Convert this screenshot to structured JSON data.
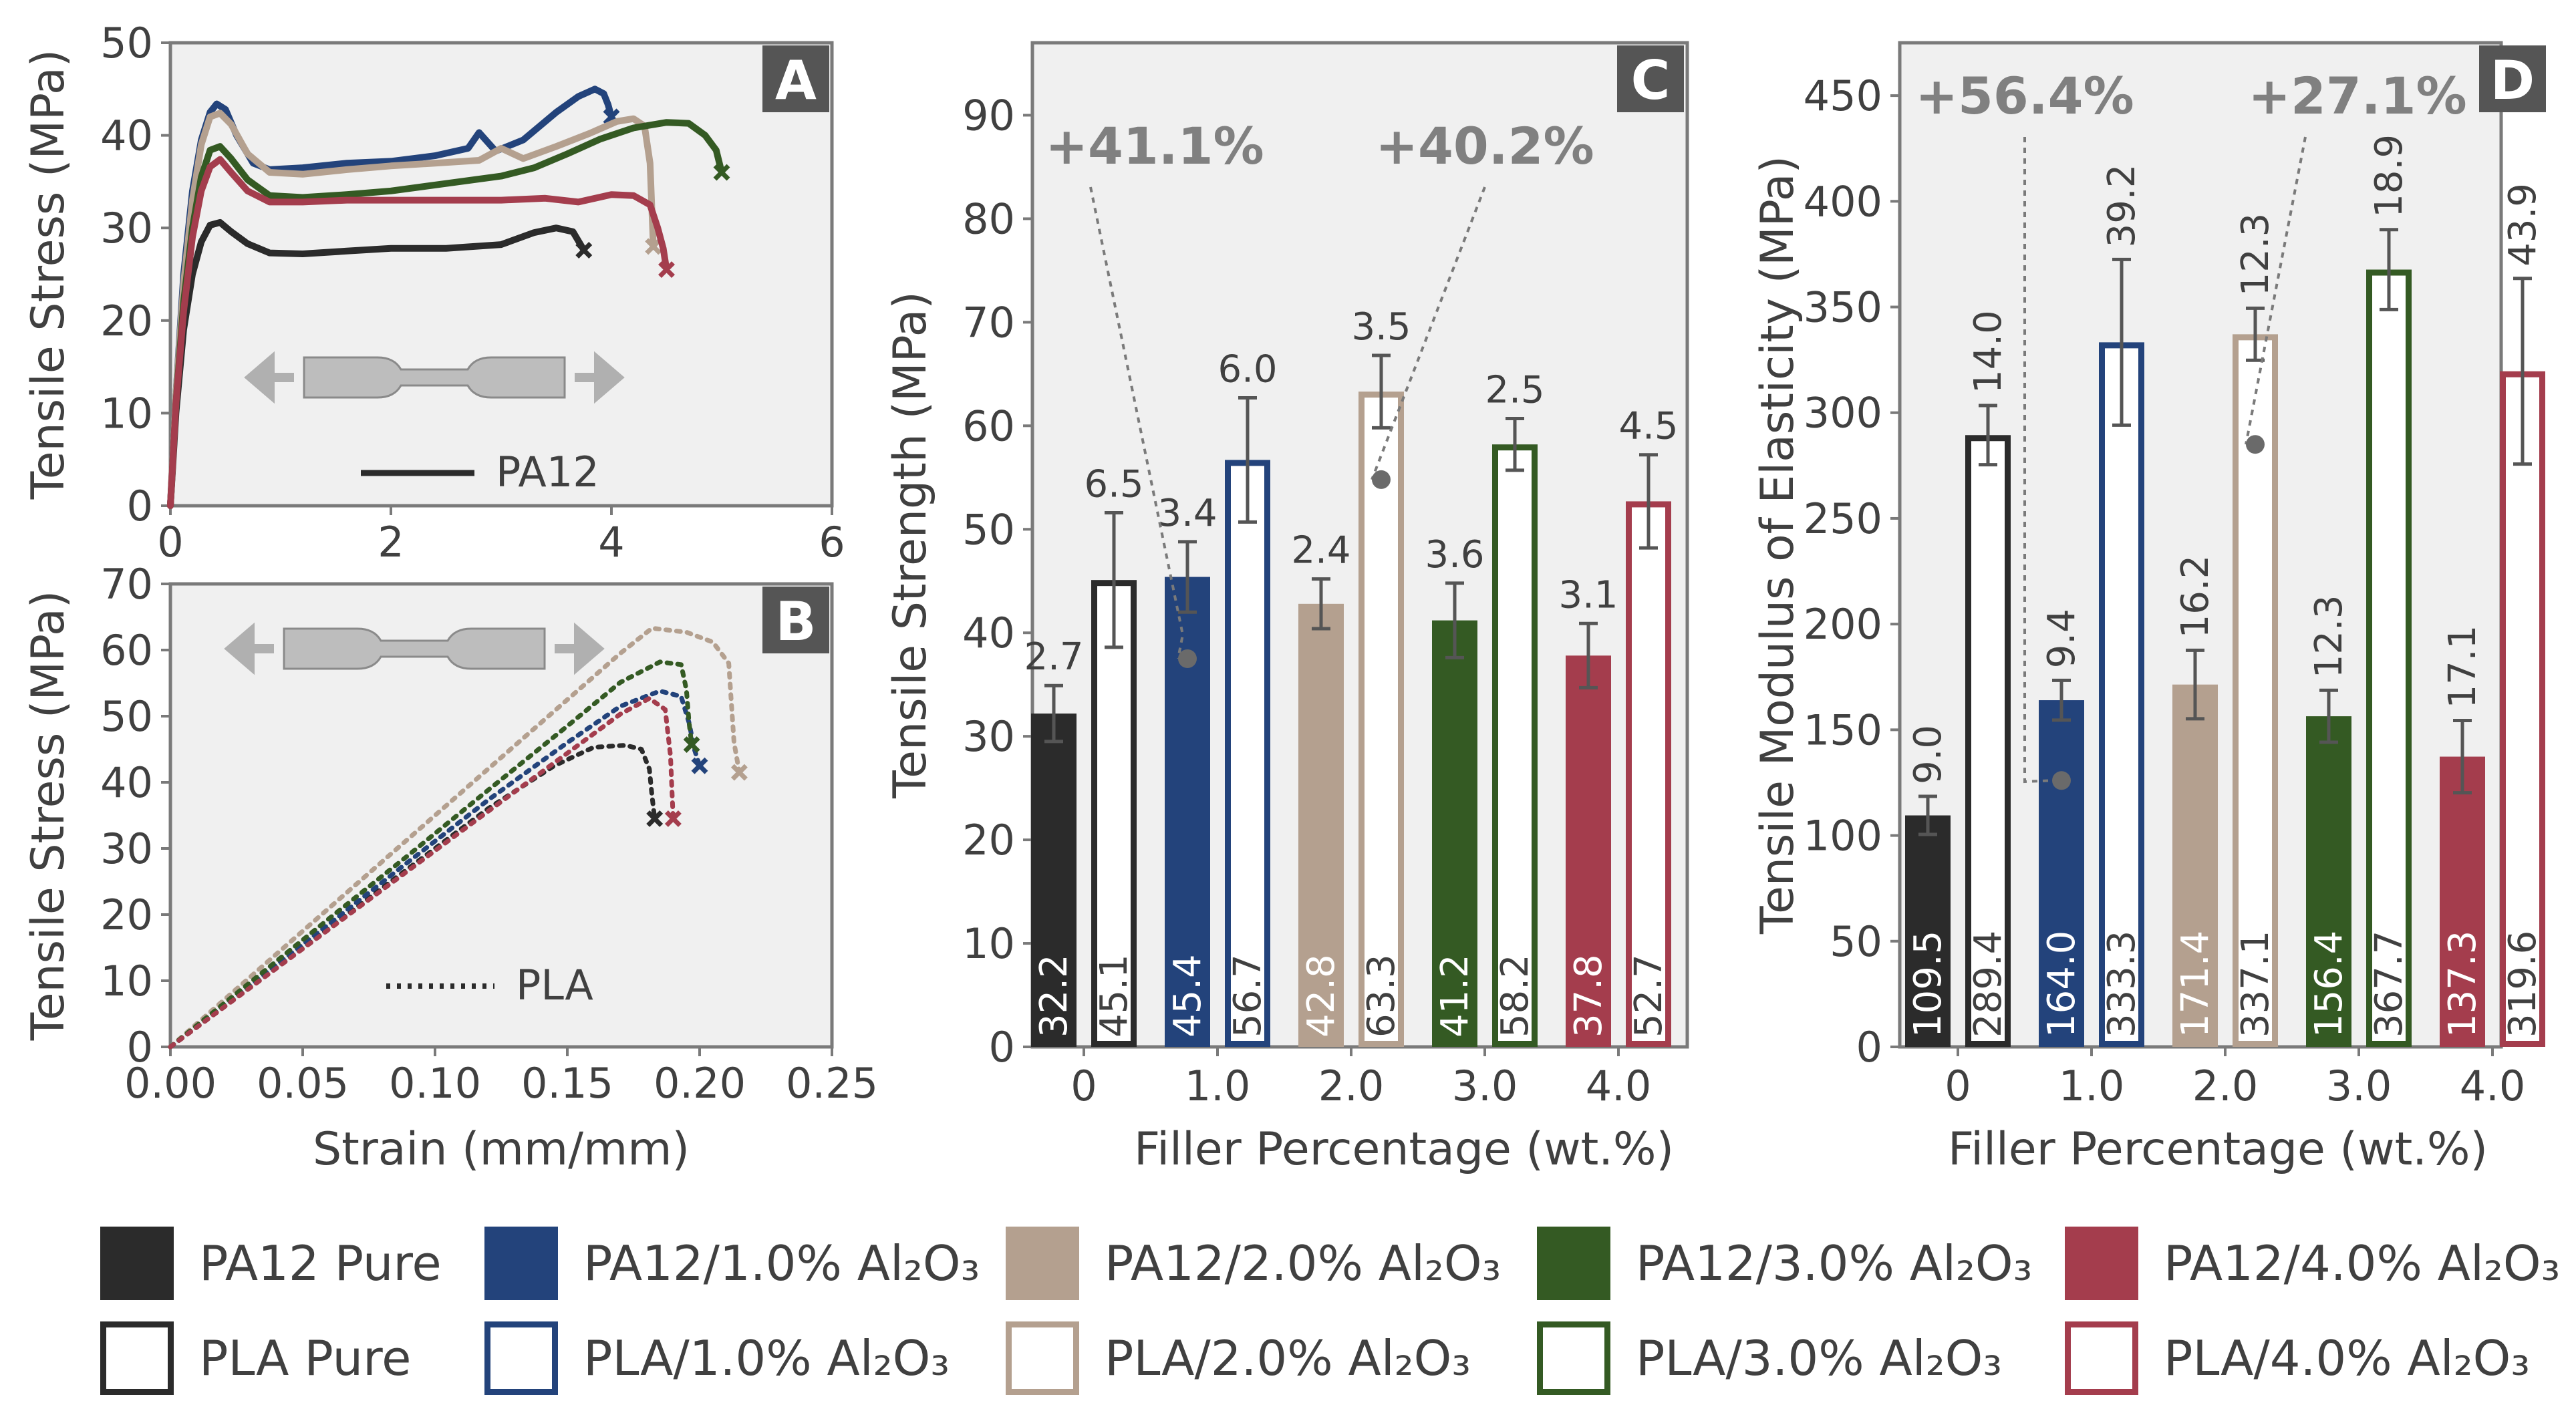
{
  "colors": {
    "pure": "#2b2b2b",
    "al1": "#23437b",
    "al2": "#b4a08f",
    "al3": "#345a23",
    "al4": "#a43d4d",
    "panel_bg": "#f0f0f0",
    "axis": "#7a7a7a",
    "text": "#404040",
    "pct": "#808080",
    "err": "#555555"
  },
  "chart_data": [
    {
      "panel": "A",
      "type": "line",
      "xlabel": "",
      "ylabel": "Tensile Stress (MPa)",
      "xlim": [
        0,
        6
      ],
      "ylim": [
        0,
        50
      ],
      "xticks": [
        "0",
        "2",
        "4",
        "6"
      ],
      "yticks": [
        "0",
        "10",
        "20",
        "30",
        "40",
        "50"
      ],
      "legend": "PA12",
      "series": [
        {
          "name": "PA12 Pure",
          "color_key": "pure",
          "x": [
            0,
            0.05,
            0.12,
            0.2,
            0.28,
            0.36,
            0.45,
            0.55,
            0.7,
            0.9,
            1.2,
            1.6,
            2.0,
            2.5,
            3.0,
            3.3,
            3.5,
            3.65,
            3.75
          ],
          "y": [
            0,
            10,
            19,
            25,
            28.5,
            30.3,
            30.6,
            29.6,
            28.3,
            27.3,
            27.2,
            27.5,
            27.8,
            27.8,
            28.2,
            29.5,
            30,
            29.6,
            27.6
          ]
        },
        {
          "name": "PA12/1.0% Al2O3",
          "color_key": "al1",
          "x": [
            0,
            0.05,
            0.12,
            0.2,
            0.28,
            0.36,
            0.42,
            0.5,
            0.6,
            0.75,
            0.9,
            1.2,
            1.6,
            2.0,
            2.4,
            2.7,
            2.8,
            2.95,
            3.2,
            3.5,
            3.7,
            3.85,
            3.93,
            3.97,
            4.0
          ],
          "y": [
            0,
            12,
            25,
            34,
            39.5,
            42.5,
            43.4,
            42.8,
            40,
            37,
            36.3,
            36.5,
            37,
            37.2,
            37.8,
            38.6,
            40.3,
            38.3,
            39.5,
            42.5,
            44.2,
            45,
            44.5,
            43.3,
            42
          ]
        },
        {
          "name": "PA12/2.0% Al2O3",
          "color_key": "al2",
          "x": [
            0,
            0.05,
            0.12,
            0.2,
            0.28,
            0.36,
            0.45,
            0.55,
            0.7,
            0.9,
            1.2,
            1.6,
            2.0,
            2.4,
            2.8,
            3.0,
            3.2,
            3.5,
            3.8,
            4.05,
            4.2,
            4.3,
            4.35,
            4.38
          ],
          "y": [
            0,
            12,
            24,
            33,
            39,
            42,
            42.4,
            41.2,
            38,
            36,
            35.8,
            36.3,
            36.7,
            37,
            37.3,
            38.6,
            37.5,
            38.8,
            40.2,
            41.5,
            41.8,
            41,
            37,
            28
          ]
        },
        {
          "name": "PA12/3.0% Al2O3",
          "color_key": "al3",
          "x": [
            0,
            0.05,
            0.12,
            0.2,
            0.28,
            0.36,
            0.45,
            0.55,
            0.7,
            0.9,
            1.2,
            1.6,
            2.0,
            2.5,
            3.0,
            3.3,
            3.6,
            3.9,
            4.2,
            4.5,
            4.7,
            4.85,
            4.95,
            5.0
          ],
          "y": [
            0,
            11,
            22,
            30,
            35.5,
            38.4,
            38.8,
            37.5,
            35.2,
            33.5,
            33.3,
            33.6,
            34,
            34.8,
            35.6,
            36.5,
            38,
            39.6,
            40.8,
            41.4,
            41.3,
            40,
            38.4,
            36
          ]
        },
        {
          "name": "PA12/4.0% Al2O3",
          "color_key": "al4",
          "x": [
            0,
            0.05,
            0.12,
            0.2,
            0.28,
            0.36,
            0.45,
            0.55,
            0.7,
            0.9,
            1.2,
            1.6,
            2.0,
            2.5,
            3.0,
            3.4,
            3.7,
            4.0,
            4.2,
            4.35,
            4.42,
            4.47,
            4.5
          ],
          "y": [
            0,
            11,
            21,
            29,
            34,
            36.6,
            37.4,
            36,
            34,
            32.8,
            32.8,
            33,
            33,
            33,
            33,
            33.2,
            32.8,
            33.6,
            33.5,
            32.5,
            30,
            27.8,
            25.5
          ]
        }
      ]
    },
    {
      "panel": "B",
      "type": "line",
      "xlabel": "Strain (mm/mm)",
      "ylabel": "Tensile Stress (MPa)",
      "xlim": [
        0,
        0.25
      ],
      "ylim": [
        0,
        70
      ],
      "xticks": [
        "0.00",
        "0.05",
        "0.10",
        "0.15",
        "0.20",
        "0.25"
      ],
      "yticks": [
        "0",
        "10",
        "20",
        "30",
        "40",
        "50",
        "60",
        "70"
      ],
      "legend": "PLA",
      "series": [
        {
          "name": "PLA Pure",
          "color_key": "pure",
          "x": [
            0,
            0.03,
            0.06,
            0.09,
            0.12,
            0.145,
            0.16,
            0.172,
            0.178,
            0.181,
            0.182,
            0.183
          ],
          "y": [
            0,
            9,
            18,
            27,
            36,
            42.5,
            45.3,
            45.6,
            45,
            42,
            38,
            34.5
          ]
        },
        {
          "name": "PLA/1.0% Al2O3",
          "color_key": "al1",
          "x": [
            0,
            0.03,
            0.06,
            0.09,
            0.12,
            0.15,
            0.17,
            0.185,
            0.193,
            0.196,
            0.198,
            0.2
          ],
          "y": [
            0,
            9.3,
            18.6,
            28,
            37.3,
            46,
            51.5,
            53.8,
            53,
            49,
            45,
            42.5
          ]
        },
        {
          "name": "PLA/2.0% Al2O3",
          "color_key": "al2",
          "x": [
            0,
            0.03,
            0.06,
            0.09,
            0.12,
            0.15,
            0.17,
            0.182,
            0.195,
            0.205,
            0.211,
            0.212,
            0.213,
            0.215
          ],
          "y": [
            0,
            10.5,
            21,
            31.5,
            42,
            52.5,
            59.5,
            63.3,
            62.7,
            61.2,
            58,
            52,
            46,
            41.5
          ]
        },
        {
          "name": "PLA/3.0% Al2O3",
          "color_key": "al3",
          "x": [
            0,
            0.03,
            0.06,
            0.09,
            0.12,
            0.15,
            0.17,
            0.185,
            0.193,
            0.195,
            0.196,
            0.197
          ],
          "y": [
            0,
            9.7,
            19.4,
            29,
            38.8,
            48.5,
            55.1,
            58.2,
            57.8,
            54,
            49,
            45.7
          ]
        },
        {
          "name": "PLA/4.0% Al2O3",
          "color_key": "al4",
          "x": [
            0,
            0.03,
            0.06,
            0.09,
            0.12,
            0.15,
            0.17,
            0.181,
            0.187,
            0.189,
            0.19
          ],
          "y": [
            0,
            8.9,
            17.8,
            26.7,
            35.6,
            44.4,
            50.3,
            52.7,
            51,
            44,
            34.5
          ]
        }
      ]
    },
    {
      "panel": "C",
      "type": "bar",
      "title": "",
      "xlabel": "Filler Percentage (wt.%)",
      "ylabel": "Tensile Strength (MPa)",
      "ylim": [
        0,
        97
      ],
      "yticks": [
        "0",
        "10",
        "20",
        "30",
        "40",
        "50",
        "60",
        "70",
        "80",
        "90"
      ],
      "categories": [
        "0",
        "1.0",
        "2.0",
        "3.0",
        "4.0"
      ],
      "series": [
        {
          "name": "PA12",
          "values": [
            32.2,
            45.4,
            42.8,
            41.2,
            37.8
          ],
          "value_labels": [
            "32.2",
            "45.4",
            "42.8",
            "41.2",
            "37.8"
          ],
          "errors": [
            2.7,
            3.4,
            2.4,
            3.6,
            3.1
          ],
          "error_labels": [
            "2.7",
            "3.4",
            "2.4",
            "3.6",
            "3.1"
          ]
        },
        {
          "name": "PLA",
          "values": [
            45.1,
            56.7,
            63.3,
            58.2,
            52.7
          ],
          "value_labels": [
            "45.1",
            "56.7",
            "63.3",
            "58.2",
            "52.7"
          ],
          "errors": [
            6.5,
            6.0,
            3.5,
            2.5,
            4.5
          ],
          "error_labels": [
            "6.5",
            "6.0",
            "3.5",
            "2.5",
            "4.5"
          ]
        }
      ],
      "annotations": [
        {
          "text": "+41.1%",
          "series": "PA12",
          "category": "1.0",
          "dot_value": 37.5
        },
        {
          "text": "+40.2%",
          "series": "PLA",
          "category": "2.0",
          "dot_value": 54.8
        }
      ]
    },
    {
      "panel": "D",
      "type": "bar",
      "title": "",
      "xlabel": "Filler Percentage (wt.%)",
      "ylabel": "Tensile Modulus of Elasticity (MPa)",
      "ylim": [
        0,
        475
      ],
      "yticks": [
        "0",
        "50",
        "100",
        "150",
        "200",
        "250",
        "300",
        "350",
        "400",
        "450"
      ],
      "categories": [
        "0",
        "1.0",
        "2.0",
        "3.0",
        "4.0"
      ],
      "series": [
        {
          "name": "PA12",
          "values": [
            109.5,
            164.0,
            171.4,
            156.4,
            137.3
          ],
          "value_labels": [
            "109.5",
            "164.0",
            "171.4",
            "156.4",
            "137.3"
          ],
          "errors": [
            9.0,
            9.4,
            16.2,
            12.3,
            17.1
          ],
          "error_labels": [
            "9.0",
            "9.4",
            "16.2",
            "12.3",
            "17.1"
          ]
        },
        {
          "name": "PLA",
          "values": [
            289.4,
            333.3,
            337.1,
            367.7,
            319.6
          ],
          "value_labels": [
            "289.4",
            "333.3",
            "337.1",
            "367.7",
            "319.6"
          ],
          "errors": [
            14.0,
            39.2,
            12.3,
            18.9,
            43.9
          ],
          "error_labels": [
            "14.0",
            "39.2",
            "12.3",
            "18.9",
            "43.9"
          ]
        }
      ],
      "annotations": [
        {
          "text": "+56.4%",
          "series": "PA12",
          "category": "1.0",
          "dot_value": 126
        },
        {
          "text": "+27.1%",
          "series": "PLA",
          "category": "2.0",
          "dot_value": 285
        }
      ]
    }
  ],
  "panel_letters": {
    "a": "A",
    "b": "B",
    "c": "C",
    "d": "D"
  },
  "inset_legend": {
    "a": "PA12",
    "b": "PLA"
  },
  "legend": {
    "row1": [
      {
        "label": "PA12 Pure",
        "color_key": "pure"
      },
      {
        "label": "PA12/1.0% Al₂O₃",
        "color_key": "al1"
      },
      {
        "label": "PA12/2.0% Al₂O₃",
        "color_key": "al2"
      },
      {
        "label": "PA12/3.0% Al₂O₃",
        "color_key": "al3"
      },
      {
        "label": "PA12/4.0% Al₂O₃",
        "color_key": "al4"
      }
    ],
    "row2": [
      {
        "label": "PLA Pure",
        "color_key": "pure"
      },
      {
        "label": "PLA/1.0% Al₂O₃",
        "color_key": "al1"
      },
      {
        "label": "PLA/2.0% Al₂O₃",
        "color_key": "al2"
      },
      {
        "label": "PLA/3.0% Al₂O₃",
        "color_key": "al3"
      },
      {
        "label": "PLA/4.0% Al₂O₃",
        "color_key": "al4"
      }
    ]
  }
}
